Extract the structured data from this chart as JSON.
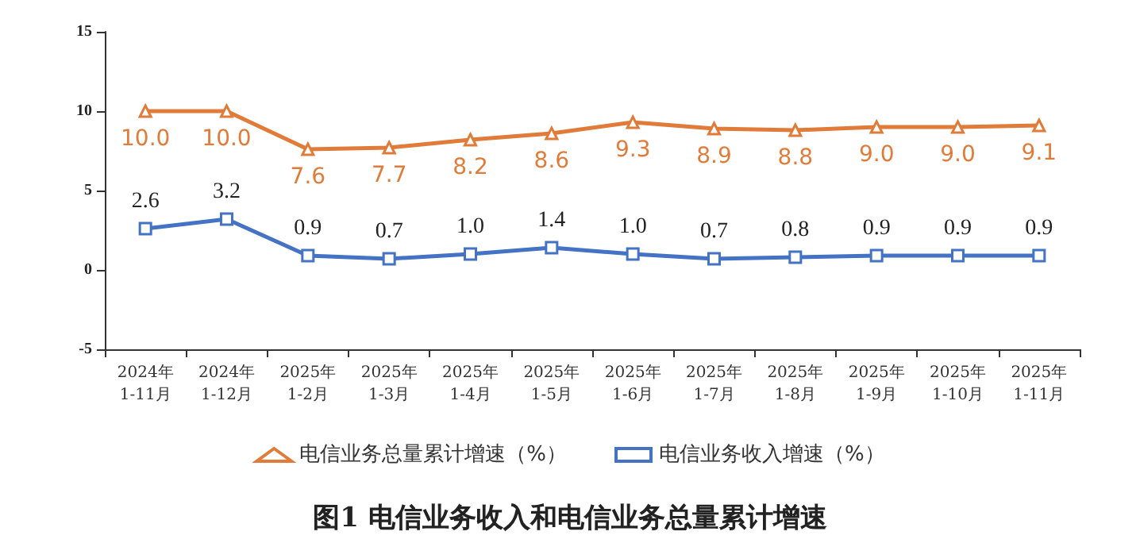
{
  "chart_data": {
    "type": "line",
    "title": "图1 电信业务收入和电信业务总量累计增速",
    "categories": [
      "2024年\n1-11月",
      "2024年\n1-12月",
      "2025年\n1-2月",
      "2025年\n1-3月",
      "2025年\n1-4月",
      "2025年\n1-5月",
      "2025年\n1-6月",
      "2025年\n1-7月",
      "2025年\n1-8月",
      "2025年\n1-9月",
      "2025年\n1-10月",
      "2025年\n1-11月"
    ],
    "series": [
      {
        "name": "电信业务总量累计增速（%）",
        "color": "#e07b39",
        "marker": "triangle",
        "values": [
          10.0,
          10.0,
          7.6,
          7.7,
          8.2,
          8.6,
          9.3,
          8.9,
          8.8,
          9.0,
          9.0,
          9.1
        ],
        "value_labels": [
          "10.0",
          "10.0",
          "7.6",
          "7.7",
          "8.2",
          "8.6",
          "9.3",
          "8.9",
          "8.8",
          "9.0",
          "9.0",
          "9.1"
        ]
      },
      {
        "name": "电信业务收入增速（%）",
        "color": "#4472c4",
        "marker": "square",
        "values": [
          2.6,
          3.2,
          0.9,
          0.7,
          1.0,
          1.4,
          1.0,
          0.7,
          0.8,
          0.9,
          0.9,
          0.9
        ],
        "value_labels": [
          "2.6",
          "3.2",
          "0.9",
          "0.7",
          "1.0",
          "1.4",
          "1.0",
          "0.7",
          "0.8",
          "0.9",
          "0.9",
          "0.9"
        ]
      }
    ],
    "ylim": [
      -5,
      15
    ],
    "yticks": [
      -5,
      0,
      5,
      10,
      15
    ],
    "grid": false,
    "legend": "bottom",
    "line_style": "solid"
  }
}
